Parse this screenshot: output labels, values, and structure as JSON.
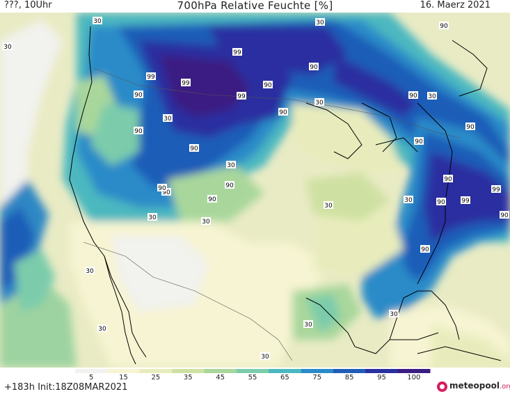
{
  "header": {
    "left": "???, 10Uhr",
    "title": "700hPa Relative Feuchte [%]",
    "date": "16. Maerz 2021"
  },
  "footer": {
    "init": "+183h  Init:18Z08MAR2021",
    "logo_main": "meteopool",
    "logo_suffix": ".org"
  },
  "colorbar": {
    "ticks": [
      "5",
      "15",
      "25",
      "35",
      "45",
      "55",
      "65",
      "75",
      "85",
      "95",
      "100"
    ],
    "colors": [
      "#f2f2ee",
      "#f6f4d2",
      "#e8ecbc",
      "#cfe1a2",
      "#a9d79b",
      "#7cccab",
      "#4bb8c0",
      "#2a8bc8",
      "#1f5db8",
      "#2a2fa0",
      "#3b1d82"
    ]
  },
  "map_labels": [
    "30",
    "90",
    "30",
    "30",
    "99",
    "99",
    "99",
    "90",
    "90",
    "99",
    "90",
    "90",
    "30",
    "30",
    "90",
    "90",
    "90",
    "90",
    "30",
    "90",
    "90",
    "90",
    "90",
    "30",
    "90",
    "30",
    "30",
    "90",
    "99",
    "99",
    "90",
    "30",
    "90",
    "30",
    "30",
    "30",
    "30",
    "30",
    "90",
    "30",
    "30",
    "30",
    "30"
  ]
}
